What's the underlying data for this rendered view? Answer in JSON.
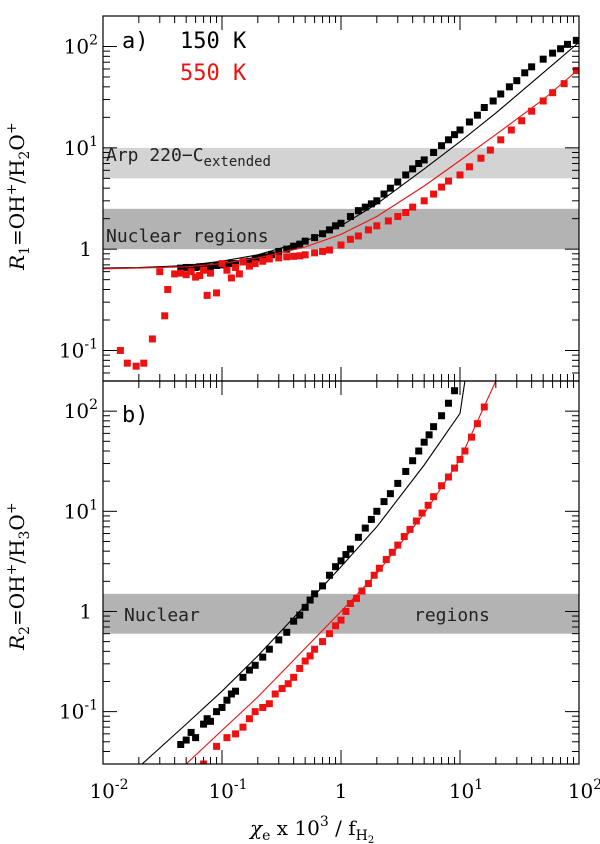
{
  "chart_data": [
    {
      "panel": "a)",
      "type": "scatter",
      "ylabel": {
        "main": "R",
        "sub": "1",
        "eq": "=OH",
        "sup": "+",
        "slash": "/H",
        "sub2": "2",
        "o": "O",
        "sup2": "+"
      },
      "xlim": [
        0.01,
        100
      ],
      "ylim": [
        0.05,
        200
      ],
      "yscale": "log",
      "xscale": "log",
      "yticks": [
        {
          "v": 0.1,
          "lbl": "10",
          "exp": "-1"
        },
        {
          "v": 1,
          "lbl": "1",
          "exp": ""
        },
        {
          "v": 10,
          "lbl": "10",
          "exp": "1"
        },
        {
          "v": 100,
          "lbl": "10",
          "exp": "2"
        }
      ],
      "legend": [
        {
          "label": "150 K",
          "color": "#000000"
        },
        {
          "label": "550 K",
          "color": "#ee1111"
        }
      ],
      "bands": [
        {
          "y0": 5,
          "y1": 10,
          "color": "#d3d3d3",
          "label": "Arp 220−C",
          "label_sub": "extended"
        },
        {
          "y0": 1,
          "y1": 2.5,
          "color": "#b3b3b3",
          "label": "Nuclear regions",
          "label_sub": ""
        }
      ],
      "series": [
        {
          "name": "150 K",
          "color": "#000000",
          "model": {
            "x": [
              0.01,
              0.02,
              0.05,
              0.1,
              0.2,
              0.5,
              1,
              2,
              5,
              10,
              20,
              50,
              100
            ],
            "y": [
              0.65,
              0.66,
              0.69,
              0.76,
              0.88,
              1.2,
              1.7,
              2.8,
              6.2,
              11.5,
              22,
              55,
              110
            ]
          },
          "points": {
            "x": [
              0.045,
              0.05,
              0.055,
              0.06,
              0.065,
              0.07,
              0.08,
              0.09,
              0.1,
              0.11,
              0.12,
              0.13,
              0.15,
              0.17,
              0.19,
              0.21,
              0.23,
              0.26,
              0.3,
              0.35,
              0.4,
              0.45,
              0.5,
              0.6,
              0.7,
              0.8,
              0.9,
              1.0,
              1.2,
              1.4,
              1.6,
              1.8,
              2.0,
              2.3,
              2.6,
              3.0,
              3.5,
              4.0,
              4.5,
              5,
              6,
              7,
              8,
              9,
              10,
              12,
              14,
              16,
              19,
              22,
              26,
              30,
              35,
              40,
              50,
              60,
              70,
              80,
              95
            ],
            "y": [
              0.65,
              0.66,
              0.66,
              0.66,
              0.67,
              0.67,
              0.67,
              0.69,
              0.7,
              0.7,
              0.72,
              0.72,
              0.75,
              0.76,
              0.8,
              0.82,
              0.84,
              0.88,
              0.95,
              1.0,
              1.07,
              1.12,
              1.2,
              1.3,
              1.42,
              1.55,
              1.7,
              1.8,
              2.1,
              2.4,
              2.6,
              2.8,
              3.0,
              3.5,
              4.0,
              4.6,
              5.4,
              6.2,
              7.0,
              7.6,
              9.0,
              10.5,
              12,
              13.5,
              15,
              18,
              21,
              25,
              29,
              34,
              40,
              46,
              55,
              63,
              75,
              86,
              95,
              105,
              115
            ]
          }
        },
        {
          "name": "550 K",
          "color": "#ee1111",
          "model": {
            "x": [
              0.01,
              0.02,
              0.05,
              0.1,
              0.2,
              0.5,
              1,
              2,
              5,
              10,
              20,
              50,
              100
            ],
            "y": [
              0.64,
              0.65,
              0.67,
              0.72,
              0.82,
              1.05,
              1.4,
              2.1,
              4.2,
              7.5,
              13.5,
              30,
              60
            ]
          },
          "points": {
            "x": [
              0.014,
              0.016,
              0.019,
              0.022,
              0.026,
              0.03,
              0.033,
              0.035,
              0.04,
              0.045,
              0.05,
              0.055,
              0.06,
              0.065,
              0.07,
              0.075,
              0.08,
              0.09,
              0.1,
              0.11,
              0.12,
              0.13,
              0.14,
              0.15,
              0.17,
              0.19,
              0.22,
              0.25,
              0.3,
              0.35,
              0.4,
              0.45,
              0.5,
              0.6,
              0.7,
              0.8,
              1.0,
              1.2,
              1.4,
              1.7,
              2.0,
              2.5,
              3.0,
              3.5,
              4.0,
              5,
              6,
              7,
              8,
              10,
              12,
              15,
              18,
              22,
              27,
              33,
              40,
              50,
              60,
              75,
              95
            ],
            "y": [
              0.1,
              0.075,
              0.07,
              0.075,
              0.13,
              0.6,
              0.22,
              0.4,
              0.57,
              0.58,
              0.56,
              0.6,
              0.53,
              0.55,
              0.62,
              0.35,
              0.58,
              0.37,
              0.72,
              0.62,
              0.52,
              0.66,
              0.57,
              0.75,
              0.68,
              0.72,
              0.76,
              0.8,
              0.82,
              0.84,
              0.85,
              0.86,
              0.88,
              0.92,
              0.95,
              0.98,
              1.1,
              1.25,
              1.35,
              1.55,
              1.7,
              1.9,
              2.1,
              2.3,
              2.6,
              3.0,
              3.5,
              4.1,
              4.7,
              5.4,
              6.5,
              7.9,
              9.5,
              12,
              15,
              18.5,
              23,
              29,
              35,
              43,
              58
            ]
          }
        }
      ]
    },
    {
      "panel": "b)",
      "type": "scatter",
      "ylabel": {
        "main": "R",
        "sub": "2",
        "eq": "=OH",
        "sup": "+",
        "slash": "/H",
        "sub2": "3",
        "o": "O",
        "sup2": "+"
      },
      "xlim": [
        0.01,
        100
      ],
      "ylim": [
        0.03,
        200
      ],
      "yscale": "log",
      "xscale": "log",
      "yticks": [
        {
          "v": 0.1,
          "lbl": "10",
          "exp": "-1"
        },
        {
          "v": 1,
          "lbl": "1",
          "exp": ""
        },
        {
          "v": 10,
          "lbl": "10",
          "exp": "1"
        },
        {
          "v": 100,
          "lbl": "10",
          "exp": "2"
        }
      ],
      "xticks": [
        {
          "v": 0.01,
          "lbl": "10",
          "exp": "-2"
        },
        {
          "v": 0.1,
          "lbl": "10",
          "exp": "-1"
        },
        {
          "v": 1,
          "lbl": "1",
          "exp": ""
        },
        {
          "v": 10,
          "lbl": "10",
          "exp": "1"
        },
        {
          "v": 100,
          "lbl": "10",
          "exp": "2"
        }
      ],
      "xlabel": {
        "chi": "χ",
        "chisub": "e",
        "rest": " x 10",
        "sup": "3",
        "slash": " / f",
        "fsub": "H",
        "fsub2": "2"
      },
      "bands": [
        {
          "y0": 0.6,
          "y1": 1.5,
          "color": "#b3b3b3",
          "label": "Nuclear",
          "label2": "regions"
        }
      ],
      "series": [
        {
          "name": "150 K",
          "color": "#000000",
          "model": {
            "x": [
              0.02,
              0.05,
              0.1,
              0.2,
              0.5,
              1,
              2,
              5,
              10,
              11
            ],
            "y": [
              0.028,
              0.075,
              0.16,
              0.36,
              1.15,
              2.8,
              7.0,
              29,
              95,
              200
            ]
          },
          "points": {
            "x": [
              0.045,
              0.05,
              0.055,
              0.06,
              0.07,
              0.075,
              0.08,
              0.09,
              0.1,
              0.11,
              0.12,
              0.13,
              0.15,
              0.17,
              0.19,
              0.22,
              0.25,
              0.3,
              0.35,
              0.4,
              0.45,
              0.5,
              0.55,
              0.6,
              0.7,
              0.8,
              0.9,
              1.0,
              1.1,
              1.2,
              1.4,
              1.6,
              1.8,
              2.0,
              2.3,
              2.6,
              3.0,
              3.5,
              4.0,
              4.5,
              5.0,
              5.5,
              6.0,
              7.0,
              8.0,
              9.0
            ],
            "y": [
              0.047,
              0.052,
              0.062,
              0.055,
              0.075,
              0.085,
              0.08,
              0.1,
              0.11,
              0.13,
              0.15,
              0.16,
              0.22,
              0.26,
              0.29,
              0.35,
              0.42,
              0.52,
              0.62,
              0.8,
              0.92,
              1.1,
              1.3,
              1.5,
              1.8,
              2.3,
              2.8,
              3.2,
              3.7,
              4.2,
              5.5,
              6.8,
              8.3,
              10,
              12.5,
              15,
              19,
              25,
              32,
              40,
              49,
              58,
              70,
              90,
              120,
              160
            ]
          }
        },
        {
          "name": "550 K",
          "color": "#ee1111",
          "model": {
            "x": [
              0.05,
              0.1,
              0.2,
              0.5,
              1,
              2,
              5,
              10,
              20
            ],
            "y": [
              0.03,
              0.065,
              0.14,
              0.43,
              1.0,
              2.4,
              9.5,
              33,
              200
            ]
          },
          "points": {
            "x": [
              0.07,
              0.09,
              0.11,
              0.13,
              0.15,
              0.17,
              0.19,
              0.22,
              0.25,
              0.28,
              0.32,
              0.36,
              0.4,
              0.45,
              0.5,
              0.55,
              0.6,
              0.7,
              0.8,
              0.9,
              1.0,
              1.1,
              1.2,
              1.35,
              1.5,
              1.7,
              1.9,
              2.1,
              2.4,
              2.7,
              3.0,
              3.4,
              3.8,
              4.3,
              4.8,
              5.4,
              6.0,
              7.0,
              8.0,
              9.0,
              10,
              11,
              12.5,
              14,
              16
            ],
            "y": [
              0.03,
              0.045,
              0.055,
              0.06,
              0.07,
              0.085,
              0.1,
              0.11,
              0.12,
              0.15,
              0.17,
              0.19,
              0.22,
              0.27,
              0.32,
              0.36,
              0.42,
              0.5,
              0.6,
              0.72,
              0.82,
              1.0,
              1.2,
              1.35,
              1.6,
              1.9,
              2.3,
              2.7,
              3.3,
              3.9,
              4.6,
              5.6,
              6.6,
              8.0,
              9.6,
              11.5,
              14,
              18,
              22,
              27,
              33,
              40,
              55,
              75,
              110
            ]
          }
        }
      ]
    }
  ]
}
